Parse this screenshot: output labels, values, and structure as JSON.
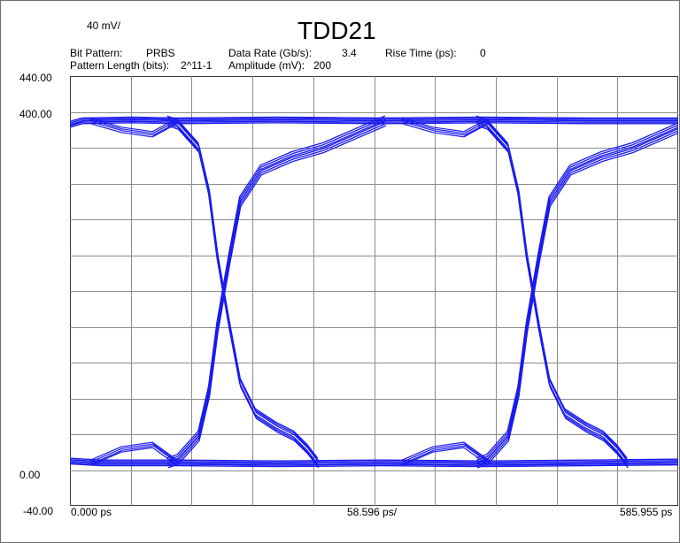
{
  "title": "TDD21",
  "vertical_scale": "40 mV/",
  "info": {
    "bit_pattern_label": "Bit Pattern:",
    "bit_pattern_value": "PRBS",
    "data_rate_label": "Data Rate (Gb/s):",
    "data_rate_value": "3.4",
    "rise_time_label": "Rise Time (ps):",
    "rise_time_value": "0",
    "pattern_length_label": "Pattern Length (bits):",
    "pattern_length_value": "2^11-1",
    "amplitude_label": "Amplitude (mV):",
    "amplitude_value": "200"
  },
  "y_ticks": [
    "440.00",
    "400.00",
    "0.00",
    "-40.00"
  ],
  "x_ticks": [
    "0.000 ps",
    "58.596 ps/",
    "585.955 ps"
  ],
  "colors": {
    "trace": "#1a1aee",
    "grid": "#8c8c8c",
    "background": "#ffffff"
  },
  "chart_data": {
    "type": "line",
    "subtype": "eye diagram",
    "title": "TDD21",
    "xlim": [
      0,
      585.955
    ],
    "ylim": [
      -40,
      440
    ],
    "x_unit": "ps",
    "y_unit": "mV",
    "x_divisions": 10,
    "y_divisions": 12,
    "grid": true,
    "levels": {
      "high": 390,
      "low": 8
    },
    "crossings": [
      {
        "x": 148,
        "y": 200
      },
      {
        "x": 445,
        "y": 200
      }
    ],
    "transitions": [
      {
        "direction": "fall",
        "start_x": 104,
        "end_x": 238
      },
      {
        "direction": "rise",
        "start_x": 104,
        "end_x": 300
      },
      {
        "direction": "rise",
        "start_x": 402,
        "end_x": 580
      },
      {
        "direction": "fall",
        "start_x": 402,
        "end_x": 538
      }
    ]
  }
}
